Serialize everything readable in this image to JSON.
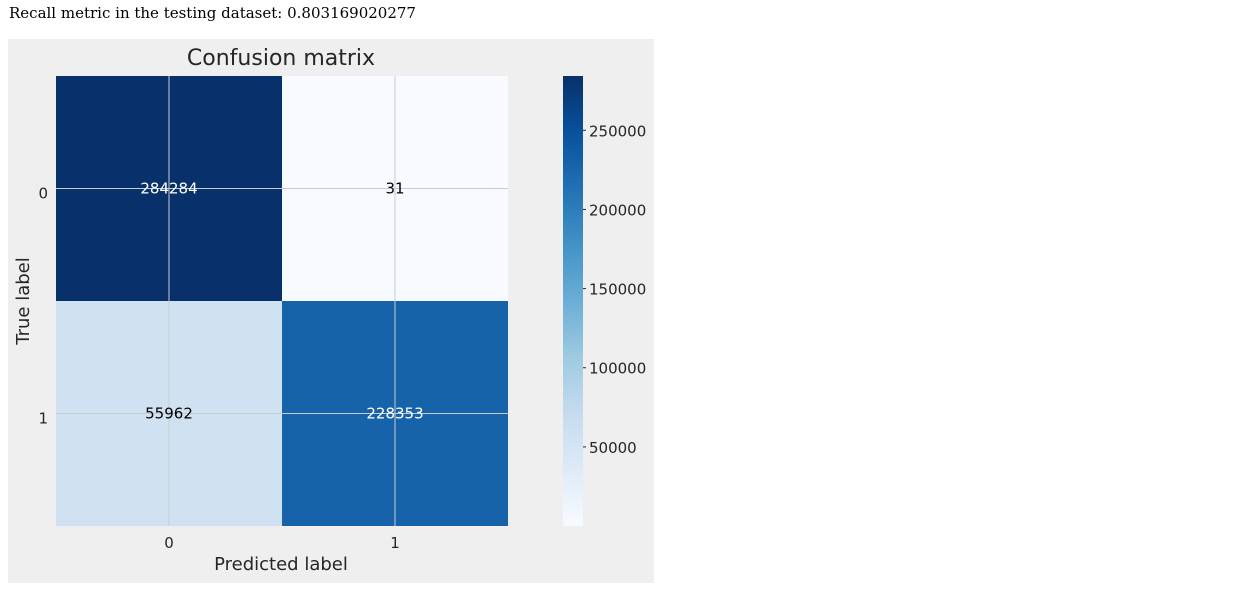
{
  "output": {
    "label": "Recall metric in the testing dataset:",
    "value": "0.803169020277"
  },
  "chart_data": {
    "type": "heatmap",
    "title": "Confusion matrix",
    "xlabel": "Predicted label",
    "ylabel": "True label",
    "x_categories": [
      "0",
      "1"
    ],
    "y_categories": [
      "0",
      "1"
    ],
    "matrix": [
      [
        284284,
        31
      ],
      [
        55962,
        228353
      ]
    ],
    "cell_labels": [
      [
        "284284",
        "31"
      ],
      [
        "55962",
        "228353"
      ]
    ],
    "colormap": "Blues",
    "vmin": 31,
    "vmax": 284284,
    "colorbar_ticks": [
      250000,
      200000,
      150000,
      100000,
      50000
    ],
    "grid": true,
    "colors": {
      "background": "#efefef",
      "grid": "#cbcbcb",
      "dark_text": "#ffffff",
      "light_text": "#000000"
    }
  }
}
